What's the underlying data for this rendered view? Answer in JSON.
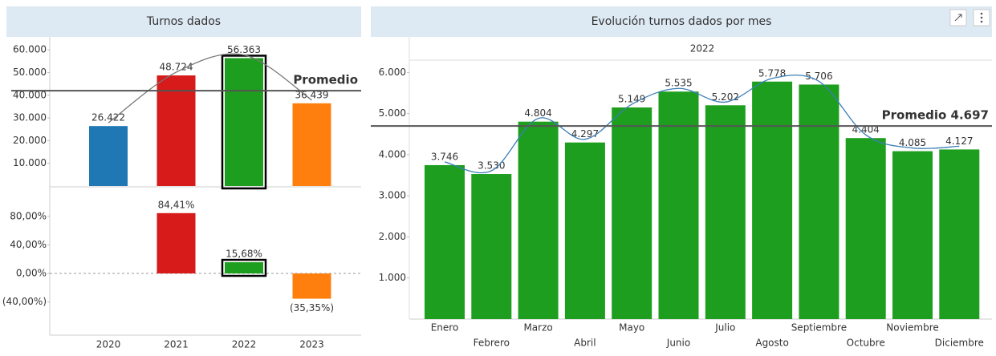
{
  "chart_data": [
    {
      "type": "bar",
      "title": "Turnos dados",
      "values": [
        26422,
        48724,
        56363,
        36439
      ],
      "value_labels": [
        "26.422",
        "48.724",
        "56.363",
        "36.439"
      ],
      "colors": [
        "#1f77b4",
        "#d71a1a",
        "#1e9e1e",
        "#ff7f0e"
      ],
      "highlight_index": 2,
      "ylim": [
        0,
        65000
      ],
      "yticks": [
        {
          "value": 10000,
          "label": "10.000"
        },
        {
          "value": 20000,
          "label": "20.000"
        },
        {
          "value": 30000,
          "label": "30.000"
        },
        {
          "value": 40000,
          "label": "40.000"
        },
        {
          "value": 50000,
          "label": "50.000"
        },
        {
          "value": 60000,
          "label": "60.000"
        }
      ],
      "reference_line": {
        "value": 41987,
        "label": "Promedio"
      },
      "trend": true
    },
    {
      "type": "bar",
      "categories": [
        "2020",
        "2021",
        "2022",
        "2023"
      ],
      "values": [
        null,
        84.41,
        15.68,
        -35.35
      ],
      "value_labels": [
        null,
        "84,41%",
        "15,68%",
        "(35,35%)"
      ],
      "colors": [
        "#1f77b4",
        "#d71a1a",
        "#1e9e1e",
        "#ff7f0e"
      ],
      "highlight_index": 2,
      "ylim": [
        -83,
        119
      ],
      "yticks": [
        {
          "value": -40,
          "label": "(40,00%)"
        },
        {
          "value": 0,
          "label": "0,00%"
        },
        {
          "value": 40,
          "label": "40,00%"
        },
        {
          "value": 80,
          "label": "80,00%"
        }
      ],
      "baseline": "dashed"
    },
    {
      "type": "bar",
      "title": "Evolución turnos dados por mes",
      "subtitle": "2022",
      "categories": [
        "Enero",
        "Febrero",
        "Marzo",
        "Abril",
        "Mayo",
        "Junio",
        "Julio",
        "Agosto",
        "Septiembre",
        "Octubre",
        "Noviembre",
        "Diciembre"
      ],
      "values": [
        3746,
        3530,
        4804,
        4297,
        5149,
        5535,
        5202,
        5778,
        5706,
        4404,
        4085,
        4127
      ],
      "value_labels": [
        "3.746",
        "3.530",
        "4.804",
        "4.297",
        "5.149",
        "5.535",
        "5.202",
        "5.778",
        "5.706",
        "4.404",
        "4.085",
        "4.127"
      ],
      "color": "#1e9e1e",
      "ylim": [
        0,
        6300
      ],
      "yticks": [
        {
          "value": 1000,
          "label": "1.000"
        },
        {
          "value": 2000,
          "label": "2.000"
        },
        {
          "value": 3000,
          "label": "3.000"
        },
        {
          "value": 4000,
          "label": "4.000"
        },
        {
          "value": 5000,
          "label": "5.000"
        },
        {
          "value": 6000,
          "label": "6.000"
        }
      ],
      "reference_line": {
        "value": 4697,
        "label": "Promedio 4.697"
      },
      "trend": true
    }
  ]
}
